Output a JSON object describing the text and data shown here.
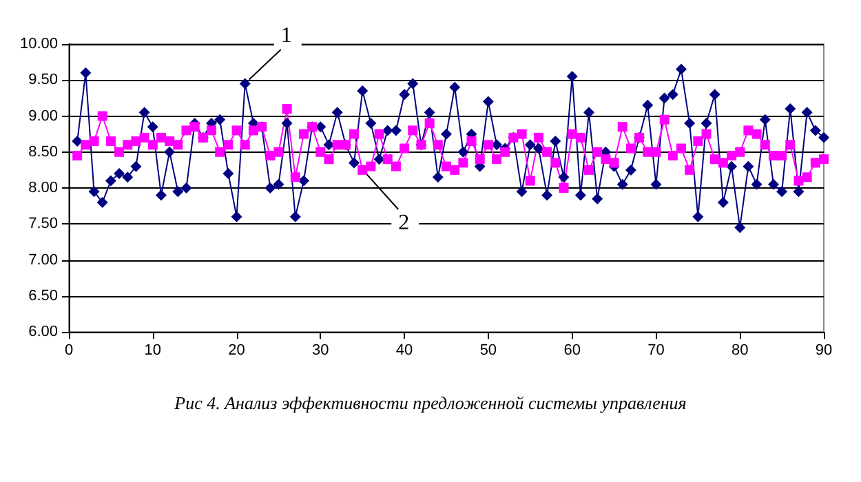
{
  "chart_data": {
    "type": "line",
    "x": [
      1,
      2,
      3,
      4,
      5,
      6,
      7,
      8,
      9,
      10,
      11,
      12,
      13,
      14,
      15,
      16,
      17,
      18,
      19,
      20,
      21,
      22,
      23,
      24,
      25,
      26,
      27,
      28,
      29,
      30,
      31,
      32,
      33,
      34,
      35,
      36,
      37,
      38,
      39,
      40,
      41,
      42,
      43,
      44,
      45,
      46,
      47,
      48,
      49,
      50,
      51,
      52,
      53,
      54,
      55,
      56,
      57,
      58,
      59,
      60,
      61,
      62,
      63,
      64,
      65,
      66,
      67,
      68,
      69,
      70,
      71,
      72,
      73,
      74,
      75,
      76,
      77,
      78,
      79,
      80,
      81,
      82,
      83,
      84,
      85,
      86,
      87,
      88,
      89,
      90
    ],
    "series": [
      {
        "name": "1",
        "color": "#000080",
        "marker": "diamond",
        "values": [
          8.65,
          9.6,
          7.95,
          7.8,
          8.1,
          8.2,
          8.15,
          8.3,
          9.05,
          8.85,
          7.9,
          8.5,
          7.95,
          8.0,
          8.9,
          8.7,
          8.9,
          8.95,
          8.2,
          7.6,
          9.45,
          8.9,
          8.85,
          8.0,
          8.05,
          8.9,
          7.6,
          8.1,
          8.85,
          8.85,
          8.6,
          9.05,
          8.6,
          8.35,
          9.35,
          8.9,
          8.4,
          8.8,
          8.8,
          9.3,
          9.45,
          8.6,
          9.05,
          8.15,
          8.75,
          9.4,
          8.5,
          8.75,
          8.3,
          9.2,
          8.6,
          8.55,
          8.7,
          7.95,
          8.6,
          8.55,
          7.9,
          8.65,
          8.15,
          9.55,
          7.9,
          9.05,
          7.85,
          8.5,
          8.3,
          8.05,
          8.25,
          8.7,
          9.15,
          8.05,
          9.25,
          9.3,
          9.65,
          8.9,
          7.6,
          8.9,
          9.3,
          7.8,
          8.3,
          7.45,
          8.3,
          8.05,
          8.95,
          8.05,
          7.95,
          9.1,
          7.95,
          9.05,
          8.8,
          8.7
        ]
      },
      {
        "name": "2",
        "color": "#ff00ff",
        "marker": "square",
        "values": [
          8.45,
          8.6,
          8.65,
          9.0,
          8.65,
          8.5,
          8.6,
          8.65,
          8.7,
          8.6,
          8.7,
          8.65,
          8.6,
          8.8,
          8.85,
          8.7,
          8.8,
          8.5,
          8.6,
          8.8,
          8.6,
          8.8,
          8.85,
          8.45,
          8.5,
          9.1,
          8.15,
          8.75,
          8.85,
          8.5,
          8.4,
          8.6,
          8.6,
          8.75,
          8.25,
          8.3,
          8.75,
          8.4,
          8.3,
          8.55,
          8.8,
          8.6,
          8.9,
          8.6,
          8.3,
          8.25,
          8.35,
          8.65,
          8.4,
          8.6,
          8.4,
          8.5,
          8.7,
          8.75,
          8.1,
          8.7,
          8.5,
          8.35,
          8.0,
          8.75,
          8.7,
          8.25,
          8.5,
          8.4,
          8.35,
          8.85,
          8.55,
          8.7,
          8.5,
          8.5,
          8.95,
          8.45,
          8.55,
          8.25,
          8.65,
          8.75,
          8.4,
          8.35,
          8.45,
          8.5,
          8.8,
          8.75,
          8.6,
          8.45,
          8.45,
          8.6,
          8.1,
          8.15,
          8.35,
          8.4
        ]
      }
    ],
    "xlim": [
      0,
      90
    ],
    "xticks": [
      0,
      10,
      20,
      30,
      40,
      50,
      60,
      70,
      80,
      90
    ],
    "ylim": [
      6,
      10
    ],
    "yticks": [
      {
        "value": 6,
        "label": "6.00"
      },
      {
        "value": 6.5,
        "label": "6.50"
      },
      {
        "value": 7,
        "label": "7.00"
      },
      {
        "value": 7.5,
        "label": "7.50"
      },
      {
        "value": 8,
        "label": "8.00"
      },
      {
        "value": 8.5,
        "label": "8.50"
      },
      {
        "value": 9,
        "label": "9.00"
      },
      {
        "value": 9.5,
        "label": "9.50"
      },
      {
        "value": 10,
        "label": "10.00"
      }
    ],
    "grid": "y",
    "legend": false,
    "line_style": "solid",
    "annotations": [
      "Рис 4. Анализ эффективности предложенной системы управления"
    ]
  }
}
